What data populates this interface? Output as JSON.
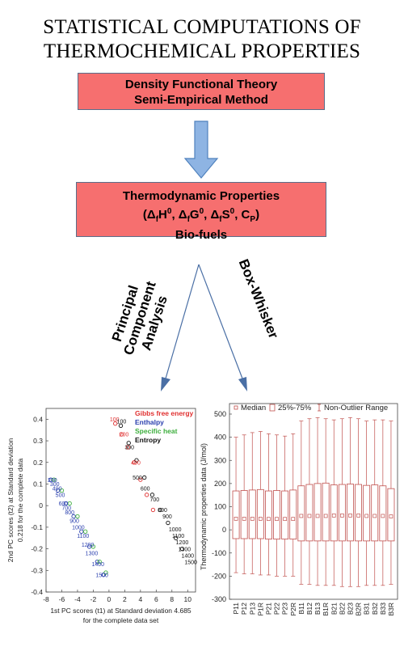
{
  "title": {
    "line1": "STATISTICAL COMPUTATIONS OF",
    "line2": "THERMOCHEMICAL PROPERTIES"
  },
  "box1": {
    "line1": "Density Functional Theory",
    "line2": "Semi-Empirical Method"
  },
  "box2": {
    "line1": "Thermodynamic Properties",
    "line2_delta": "Δ",
    "line2_sub_f": "f",
    "line2_h0": "H",
    "line2_sup0": "0",
    "line2_sep": ", ",
    "line2_g0": "G",
    "line2_s0": "S",
    "line2_c": "C",
    "line2_sub_p": "P",
    "line3": "Bio-fuels"
  },
  "labels": {
    "pca_line1": "Principal",
    "pca_line2": "Component",
    "pca_line3": "Analysis",
    "box_whisker": "Box-Whisker"
  },
  "colors": {
    "box_fill": "#f66f6f",
    "arrow_fill": "#8eb4e3",
    "gibbs": "#e03030",
    "enthalpy": "#2a3fae",
    "specific_heat": "#3cae3c",
    "entropy": "#111111",
    "boxplot": "#c0504d"
  },
  "chart_data": [
    {
      "type": "scatter",
      "xlabel_line1": "1st PC scores (t1) at Standard deviation 4.685",
      "xlabel_line2": "for the complete data set",
      "ylabel_line1": "2nd PC scores (t2) at Standard deviation",
      "ylabel_line2": "0.218 for the complete data",
      "xlim": [
        -8,
        11
      ],
      "ylim": [
        -0.4,
        0.45
      ],
      "xticks": [
        -8,
        -6,
        -4,
        -2,
        0,
        2,
        4,
        6,
        8,
        10
      ],
      "yticks": [
        0.4,
        0.3,
        0.2,
        0.1,
        0,
        -0.1,
        -0.2,
        -0.3,
        -0.4
      ],
      "legend": [
        "Gibbs free energy",
        "Enthalpy",
        "Specific heat",
        "Entropy"
      ],
      "legend_position": "top-right",
      "series": [
        {
          "name": "Gibbs free energy",
          "x": [
            0.8,
            1.6,
            2.4,
            3.2,
            4.0,
            4.8,
            5.6
          ],
          "y": [
            0.38,
            0.33,
            0.27,
            0.2,
            0.12,
            0.05,
            -0.02
          ]
        },
        {
          "name": "Enthalpy",
          "x": [
            -7.4,
            -6.5,
            -5.5,
            -4.5,
            -3.5,
            -2.5,
            -1.5,
            -0.7
          ],
          "y": [
            0.12,
            0.07,
            0.01,
            -0.05,
            -0.12,
            -0.19,
            -0.26,
            -0.32
          ]
        },
        {
          "name": "Specific heat",
          "x": [
            -7.0,
            -6.0,
            -5.0,
            -4.0,
            -3.0,
            -2.0,
            -1.2,
            -0.4
          ],
          "y": [
            0.12,
            0.07,
            0.01,
            -0.05,
            -0.12,
            -0.19,
            -0.26,
            -0.31
          ]
        },
        {
          "name": "Entropy",
          "x": [
            1.5,
            2.5,
            3.5,
            4.5,
            5.5,
            6.5,
            7.5,
            8.5,
            9.3
          ],
          "y": [
            0.37,
            0.29,
            0.21,
            0.13,
            0.05,
            -0.02,
            -0.08,
            -0.15,
            -0.2
          ]
        }
      ],
      "point_labels": [
        {
          "text": "100",
          "x": 0.7,
          "y": 0.39,
          "series": 0
        },
        {
          "text": "100",
          "x": 1.6,
          "y": 0.38,
          "series": 3
        },
        {
          "text": "200",
          "x": 1.9,
          "y": 0.32,
          "series": 0
        },
        {
          "text": "300",
          "x": 2.6,
          "y": 0.26,
          "series": 3
        },
        {
          "text": "400",
          "x": 3.4,
          "y": 0.19,
          "series": 0
        },
        {
          "text": "500",
          "x": 3.6,
          "y": 0.12,
          "series": 3
        },
        {
          "text": "600",
          "x": 4.6,
          "y": 0.07,
          "series": 3
        },
        {
          "text": "700",
          "x": 5.8,
          "y": 0.02,
          "series": 3
        },
        {
          "text": "800",
          "x": 6.8,
          "y": -0.03,
          "series": 3
        },
        {
          "text": "900",
          "x": 7.4,
          "y": -0.06,
          "series": 3
        },
        {
          "text": "1000",
          "x": 8.4,
          "y": -0.12,
          "series": 3
        },
        {
          "text": "1100",
          "x": 8.8,
          "y": -0.15,
          "series": 3
        },
        {
          "text": "1200",
          "x": 9.3,
          "y": -0.18,
          "series": 3
        },
        {
          "text": "1300",
          "x": 9.6,
          "y": -0.21,
          "series": 3
        },
        {
          "text": "1400",
          "x": 10.0,
          "y": -0.24,
          "series": 3
        },
        {
          "text": "1500",
          "x": 10.4,
          "y": -0.27,
          "series": 3
        },
        {
          "text": "200",
          "x": -7.2,
          "y": 0.11,
          "series": 1
        },
        {
          "text": "300",
          "x": -6.9,
          "y": 0.09,
          "series": 1
        },
        {
          "text": "400",
          "x": -6.6,
          "y": 0.07,
          "series": 1
        },
        {
          "text": "500",
          "x": -6.2,
          "y": 0.04,
          "series": 1
        },
        {
          "text": "600",
          "x": -5.8,
          "y": 0.0,
          "series": 1
        },
        {
          "text": "700",
          "x": -5.4,
          "y": -0.02,
          "series": 1
        },
        {
          "text": "800",
          "x": -5.0,
          "y": -0.04,
          "series": 1
        },
        {
          "text": "900",
          "x": -4.4,
          "y": -0.08,
          "series": 1
        },
        {
          "text": "1000",
          "x": -3.9,
          "y": -0.11,
          "series": 1
        },
        {
          "text": "1100",
          "x": -3.3,
          "y": -0.15,
          "series": 1
        },
        {
          "text": "1200",
          "x": -2.7,
          "y": -0.19,
          "series": 1
        },
        {
          "text": "1300",
          "x": -2.2,
          "y": -0.23,
          "series": 1
        },
        {
          "text": "1400",
          "x": -1.4,
          "y": -0.28,
          "series": 1
        },
        {
          "text": "1500",
          "x": -0.9,
          "y": -0.33,
          "series": 1
        }
      ]
    },
    {
      "type": "boxplot",
      "ylabel": "Thermodynamic properties data (J/mol)",
      "ylim": [
        -300,
        500
      ],
      "yticks": [
        500,
        400,
        300,
        200,
        100,
        0,
        -100,
        -200,
        -300
      ],
      "legend": [
        "Median",
        "25%-75%",
        "Non-Outlier Range"
      ],
      "legend_position": "top",
      "categories": [
        "P11",
        "P12",
        "P13",
        "P1R",
        "P21",
        "P22",
        "P23",
        "P2R",
        "B11",
        "B12",
        "B13",
        "B1R",
        "B21",
        "B22",
        "B23",
        "B2R",
        "B31",
        "B32",
        "B33",
        "B3R"
      ],
      "median": [
        48,
        48,
        48,
        48,
        47,
        47,
        47,
        47,
        60,
        60,
        60,
        60,
        62,
        62,
        62,
        62,
        60,
        60,
        60,
        58
      ],
      "q1": [
        -38,
        -38,
        -38,
        -38,
        -40,
        -40,
        -40,
        -40,
        -48,
        -48,
        -48,
        -48,
        -48,
        -48,
        -48,
        -48,
        -48,
        -48,
        -48,
        -48
      ],
      "q3": [
        168,
        170,
        172,
        174,
        168,
        170,
        168,
        172,
        190,
        196,
        200,
        202,
        194,
        196,
        198,
        196,
        192,
        194,
        190,
        178
      ],
      "min": [
        -185,
        -190,
        -190,
        -195,
        -195,
        -200,
        -200,
        -200,
        -235,
        -235,
        -240,
        -240,
        -240,
        -245,
        -245,
        -245,
        -240,
        -240,
        -240,
        -235
      ],
      "max": [
        400,
        410,
        420,
        425,
        415,
        410,
        405,
        415,
        470,
        480,
        485,
        480,
        475,
        480,
        485,
        480,
        470,
        475,
        475,
        470
      ]
    }
  ]
}
